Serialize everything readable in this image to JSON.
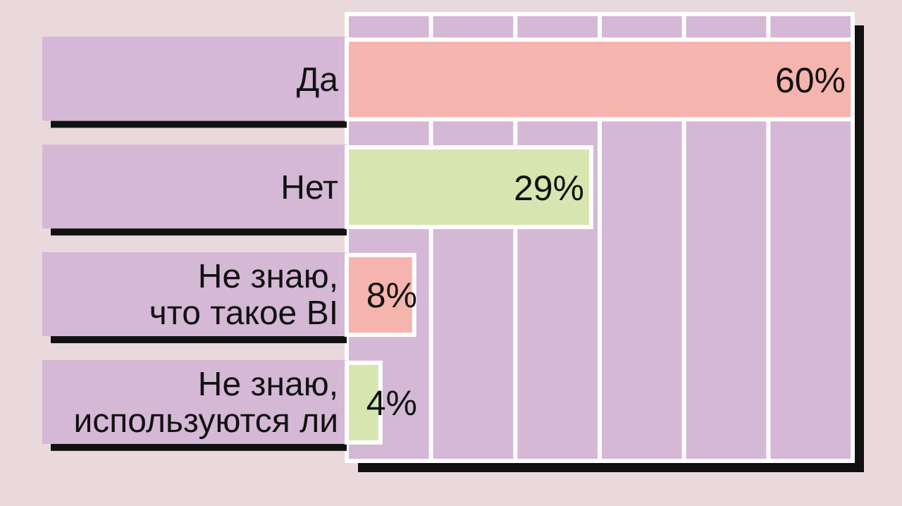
{
  "chart_data": {
    "type": "bar",
    "orientation": "horizontal",
    "categories": [
      "Да",
      "Нет",
      "Не знаю,\nчто такое BI",
      "Не знаю,\nиспользуются ли"
    ],
    "values": [
      60,
      29,
      8,
      4
    ],
    "colors": [
      "#f5b4ae",
      "#d7e6b0",
      "#f5b4ae",
      "#d7e6b0"
    ],
    "value_labels": [
      "60%",
      "29%",
      "8%",
      "4%"
    ],
    "xlim": [
      0,
      60
    ],
    "xticks": [
      {
        "value": 0,
        "label": null
      },
      {
        "value": 10,
        "label": null
      },
      {
        "value": 20,
        "label": null
      },
      {
        "value": 30,
        "label": null
      },
      {
        "value": 40,
        "label": null
      },
      {
        "value": 50,
        "label": null
      },
      {
        "value": 60,
        "label": null
      }
    ],
    "tick_labels": "y",
    "grid": "x"
  }
}
